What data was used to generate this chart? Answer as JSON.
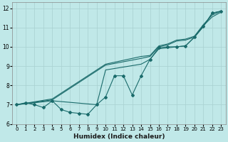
{
  "xlabel": "Humidex (Indice chaleur)",
  "bg_color": "#c0e8e8",
  "grid_color": "#a8d0d0",
  "line_color": "#1a6b6b",
  "xlim": [
    -0.5,
    23.5
  ],
  "ylim": [
    6.0,
    12.3
  ],
  "yticks": [
    6,
    7,
    8,
    9,
    10,
    11,
    12
  ],
  "xticks": [
    0,
    1,
    2,
    3,
    4,
    5,
    6,
    7,
    8,
    9,
    10,
    11,
    12,
    13,
    14,
    15,
    16,
    17,
    18,
    19,
    20,
    21,
    22,
    23
  ],
  "lines": [
    {
      "x": [
        0,
        1,
        2,
        3,
        4,
        5,
        6,
        7,
        8,
        9,
        10,
        11,
        12,
        13,
        14,
        15,
        16,
        17,
        18,
        19,
        20,
        21,
        22,
        23
      ],
      "y": [
        7.0,
        7.1,
        7.0,
        6.85,
        7.2,
        6.75,
        6.6,
        6.55,
        6.5,
        7.0,
        7.4,
        8.5,
        8.5,
        7.5,
        8.5,
        9.35,
        9.95,
        10.0,
        10.0,
        10.05,
        10.5,
        11.05,
        11.75,
        11.85
      ],
      "marker": true
    },
    {
      "x": [
        0,
        4,
        10,
        14,
        15,
        16,
        17,
        18,
        19,
        20,
        21,
        22,
        23
      ],
      "y": [
        7.0,
        7.3,
        9.1,
        9.5,
        9.55,
        10.05,
        10.15,
        10.35,
        10.4,
        10.55,
        11.15,
        11.65,
        11.85
      ],
      "marker": false
    },
    {
      "x": [
        0,
        4,
        10,
        14,
        15,
        16,
        17,
        18,
        19,
        20,
        21,
        22,
        23
      ],
      "y": [
        7.0,
        7.25,
        9.05,
        9.4,
        9.5,
        10.0,
        10.1,
        10.3,
        10.35,
        10.5,
        11.1,
        11.55,
        11.8
      ],
      "marker": false
    },
    {
      "x": [
        0,
        4,
        9,
        10,
        14,
        15,
        16,
        17,
        18,
        19,
        20,
        21,
        22,
        23
      ],
      "y": [
        7.0,
        7.2,
        7.0,
        8.8,
        9.1,
        9.35,
        9.9,
        9.95,
        10.0,
        10.05,
        10.5,
        11.05,
        11.75,
        11.85
      ],
      "marker": false
    }
  ]
}
